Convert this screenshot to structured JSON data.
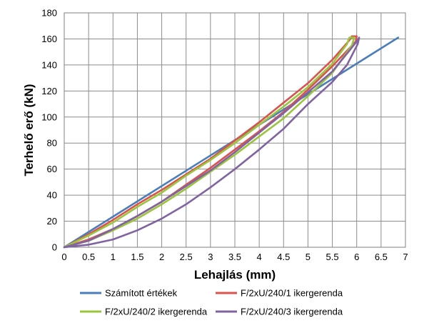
{
  "chart_data": {
    "type": "line",
    "xlabel": "Lehajlás (mm)",
    "ylabel": "Terhelő erő (kN)",
    "xlim": [
      0,
      7
    ],
    "ylim": [
      0,
      180
    ],
    "x_ticks": [
      "0",
      "0.5",
      "1",
      "1.5",
      "2",
      "2.5",
      "3",
      "3.5",
      "4",
      "4.5",
      "5",
      "5.5",
      "6",
      "6.5",
      "7"
    ],
    "y_ticks": [
      "0",
      "20",
      "40",
      "60",
      "80",
      "100",
      "120",
      "140",
      "160",
      "180"
    ],
    "grid": true,
    "legend_position": "bottom",
    "series": [
      {
        "name": "Számított értékek",
        "color": "#4a7ebb",
        "points": [
          [
            0,
            0
          ],
          [
            6.85,
            161
          ]
        ]
      },
      {
        "name": "F/2xU/240/1 ikergerenda",
        "color": "#d9534f",
        "points": [
          [
            0,
            0
          ],
          [
            0.5,
            10
          ],
          [
            1,
            21
          ],
          [
            1.5,
            33
          ],
          [
            2,
            44
          ],
          [
            2.5,
            56
          ],
          [
            3,
            68
          ],
          [
            3.5,
            82
          ],
          [
            4,
            96
          ],
          [
            4.5,
            111
          ],
          [
            5,
            126
          ],
          [
            5.5,
            144
          ],
          [
            5.85,
            159
          ],
          [
            5.9,
            162
          ],
          [
            6.0,
            162
          ],
          [
            5.98,
            158
          ],
          [
            5.5,
            139
          ],
          [
            5,
            121
          ],
          [
            4.5,
            104
          ],
          [
            4,
            89
          ],
          [
            3.5,
            75
          ],
          [
            3,
            61
          ],
          [
            2.5,
            48
          ],
          [
            2,
            35
          ],
          [
            1.5,
            24
          ],
          [
            1,
            14
          ],
          [
            0.5,
            6
          ],
          [
            0,
            0
          ]
        ]
      },
      {
        "name": "F/2xU/240/2 ikergerenda",
        "color": "#9bc53d",
        "points": [
          [
            0,
            0
          ],
          [
            0.5,
            9
          ],
          [
            1,
            19
          ],
          [
            1.5,
            31
          ],
          [
            2,
            42
          ],
          [
            2.5,
            55
          ],
          [
            3,
            67
          ],
          [
            3.5,
            80
          ],
          [
            4,
            94
          ],
          [
            4.5,
            108
          ],
          [
            5,
            123
          ],
          [
            5.5,
            141
          ],
          [
            5.8,
            156
          ],
          [
            5.85,
            161
          ],
          [
            5.95,
            161
          ],
          [
            5.9,
            155
          ],
          [
            5.5,
            134
          ],
          [
            5,
            116
          ],
          [
            4.5,
            99
          ],
          [
            4,
            85
          ],
          [
            3.5,
            71
          ],
          [
            3,
            58
          ],
          [
            2.5,
            45
          ],
          [
            2,
            33
          ],
          [
            1.5,
            22
          ],
          [
            1,
            13
          ],
          [
            0.5,
            5
          ],
          [
            0,
            0
          ]
        ]
      },
      {
        "name": "F/2xU/240/3 ikergerenda",
        "color": "#8064a2",
        "points": [
          [
            0,
            0
          ],
          [
            0.5,
            5
          ],
          [
            1,
            14
          ],
          [
            1.5,
            24
          ],
          [
            2,
            35
          ],
          [
            2.5,
            47
          ],
          [
            3,
            59
          ],
          [
            3.5,
            73
          ],
          [
            4,
            88
          ],
          [
            4.5,
            103
          ],
          [
            5,
            119
          ],
          [
            5.5,
            135
          ],
          [
            5.85,
            151
          ],
          [
            6.0,
            158
          ],
          [
            6.05,
            161
          ],
          [
            6.02,
            156
          ],
          [
            5.8,
            140
          ],
          [
            5.5,
            127
          ],
          [
            5,
            110
          ],
          [
            4.5,
            91
          ],
          [
            4,
            75
          ],
          [
            3.5,
            60
          ],
          [
            3,
            46
          ],
          [
            2.5,
            33
          ],
          [
            2,
            22
          ],
          [
            1.5,
            13
          ],
          [
            1,
            6
          ],
          [
            0.5,
            2
          ],
          [
            0,
            0
          ]
        ]
      }
    ]
  }
}
